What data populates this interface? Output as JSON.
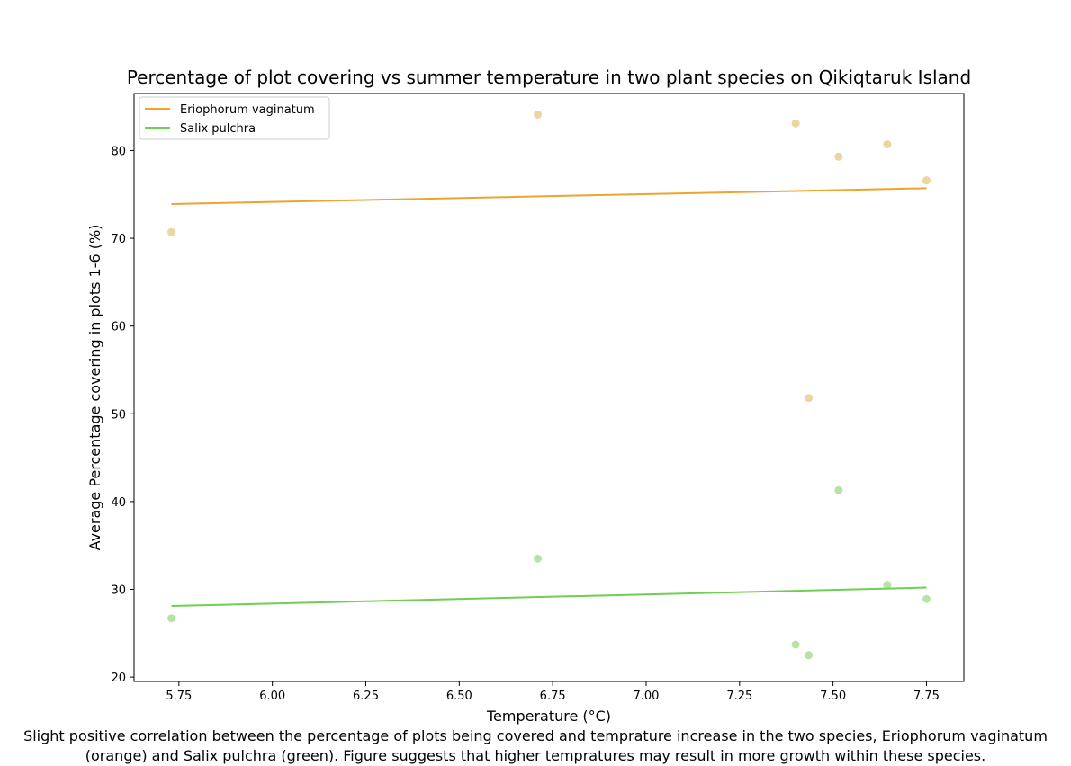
{
  "chart_data": {
    "type": "scatter",
    "title": "Percentage of plot covering vs summer temperature in two plant species on Qikiqtaruk Island",
    "xlabel": "Temperature  (°C)",
    "ylabel": "Average Percentage covering in plots 1-6 (%)",
    "xlim": [
      5.63,
      7.85
    ],
    "ylim": [
      19.5,
      86.5
    ],
    "xticks": [
      5.75,
      6.0,
      6.25,
      6.5,
      6.75,
      7.0,
      7.25,
      7.5,
      7.75
    ],
    "xtick_labels": [
      "5.75",
      "6.00",
      "6.25",
      "6.50",
      "6.75",
      "7.00",
      "7.25",
      "7.50",
      "7.75"
    ],
    "yticks": [
      20,
      30,
      40,
      50,
      60,
      70,
      80
    ],
    "ytick_labels": [
      "20",
      "30",
      "40",
      "50",
      "60",
      "70",
      "80"
    ],
    "grid": false,
    "legend_position": "top-left",
    "series": [
      {
        "name": "Eriophorum vaginatum",
        "point_color": "#ecd4a4",
        "line_color": "#f0a32e",
        "points": [
          {
            "x": 5.73,
            "y": 70.7
          },
          {
            "x": 6.71,
            "y": 84.1
          },
          {
            "x": 7.4,
            "y": 83.1
          },
          {
            "x": 7.435,
            "y": 51.8
          },
          {
            "x": 7.515,
            "y": 79.3
          },
          {
            "x": 7.645,
            "y": 80.7
          },
          {
            "x": 7.75,
            "y": 76.6
          }
        ],
        "trend": {
          "x": [
            5.73,
            7.75
          ],
          "y": [
            73.9,
            75.7
          ]
        }
      },
      {
        "name": "Salix pulchra",
        "point_color": "#b8e3a6",
        "line_color": "#6fcf50",
        "points": [
          {
            "x": 5.73,
            "y": 26.7
          },
          {
            "x": 6.71,
            "y": 33.5
          },
          {
            "x": 7.4,
            "y": 23.7
          },
          {
            "x": 7.435,
            "y": 22.5
          },
          {
            "x": 7.515,
            "y": 41.3
          },
          {
            "x": 7.645,
            "y": 30.5
          },
          {
            "x": 7.75,
            "y": 28.9
          }
        ],
        "trend": {
          "x": [
            5.73,
            7.75
          ],
          "y": [
            28.1,
            30.2
          ]
        }
      }
    ]
  },
  "caption": {
    "line1": "Slight positive correlation between the percentage of plots being covered and temprature increase in the two species, Eriophorum vaginatum",
    "line2": "(orange) and Salix pulchra (green). Figure suggests that higher tempratures may result in more growth within these species."
  }
}
